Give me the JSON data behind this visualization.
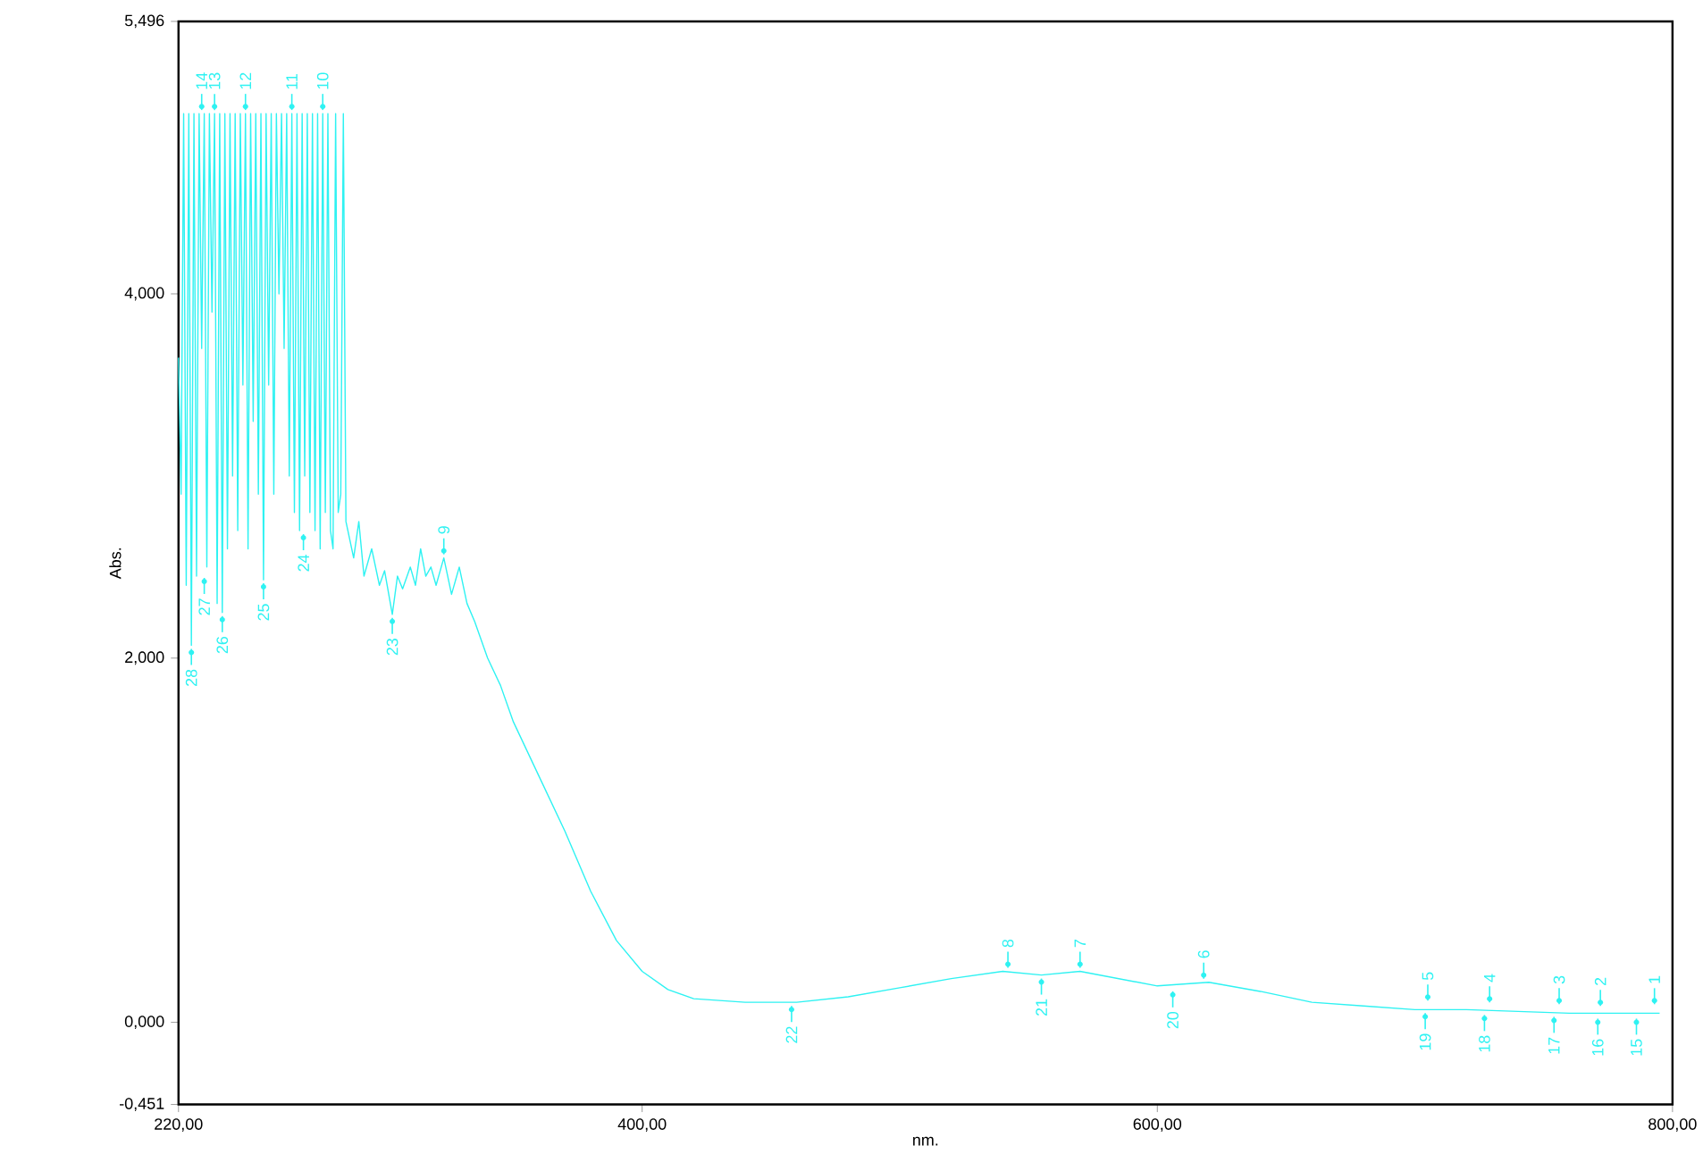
{
  "chart_data": {
    "type": "line",
    "xlabel": "nm.",
    "ylabel": "Abs.",
    "xlim": [
      220,
      800
    ],
    "ylim": [
      -0.451,
      5.496
    ],
    "xticks": [
      {
        "value": 220,
        "label": "220,00"
      },
      {
        "value": 400,
        "label": "400,00"
      },
      {
        "value": 600,
        "label": "600,00"
      },
      {
        "value": 800,
        "label": "800,00"
      }
    ],
    "yticks": [
      {
        "value": -0.451,
        "label": "-0,451"
      },
      {
        "value": 0,
        "label": "0,000"
      },
      {
        "value": 2,
        "label": "2,000"
      },
      {
        "value": 4,
        "label": "4,000"
      },
      {
        "value": 5.496,
        "label": "5,496"
      }
    ],
    "series": [
      {
        "color": "#2ef2f2",
        "x": [
          220,
          221,
          222,
          223,
          224,
          225,
          226,
          227,
          228,
          229,
          230,
          231,
          232,
          233,
          234,
          235,
          236,
          237,
          238,
          239,
          240,
          241,
          242,
          243,
          244,
          245,
          246,
          247,
          248,
          249,
          250,
          251,
          252,
          253,
          254,
          255,
          256,
          257,
          258,
          259,
          260,
          261,
          262,
          263,
          264,
          265,
          266,
          267,
          268,
          269,
          270,
          271,
          272,
          273,
          274,
          275,
          276,
          277,
          278,
          279,
          280,
          281,
          282,
          283,
          284,
          285,
          288,
          290,
          292,
          295,
          298,
          300,
          303,
          305,
          307,
          310,
          312,
          314,
          316,
          318,
          320,
          323,
          326,
          329,
          332,
          335,
          340,
          345,
          350,
          360,
          370,
          380,
          390,
          400,
          410,
          420,
          440,
          460,
          480,
          500,
          520,
          540,
          555,
          570,
          585,
          600,
          620,
          640,
          660,
          680,
          700,
          720,
          740,
          760,
          780,
          795
        ],
        "values": [
          3.65,
          2.9,
          4.99,
          2.4,
          4.99,
          2.07,
          4.99,
          2.45,
          4.99,
          3.7,
          4.99,
          2.5,
          4.99,
          3.9,
          4.99,
          2.3,
          4.99,
          2.25,
          4.99,
          2.6,
          4.99,
          3.0,
          4.99,
          2.7,
          4.99,
          3.5,
          4.99,
          2.6,
          4.99,
          3.3,
          4.99,
          2.9,
          4.99,
          2.43,
          4.99,
          3.5,
          4.99,
          2.9,
          4.99,
          4.0,
          4.99,
          3.7,
          4.99,
          3.0,
          4.99,
          2.8,
          4.99,
          2.7,
          4.99,
          3.0,
          4.99,
          2.8,
          4.99,
          2.7,
          4.99,
          2.6,
          4.99,
          2.8,
          4.99,
          2.7,
          2.6,
          4.99,
          2.8,
          2.9,
          4.99,
          2.75,
          2.55,
          2.75,
          2.45,
          2.6,
          2.4,
          2.48,
          2.24,
          2.45,
          2.38,
          2.5,
          2.4,
          2.6,
          2.45,
          2.5,
          2.4,
          2.55,
          2.35,
          2.5,
          2.3,
          2.2,
          2.0,
          1.85,
          1.65,
          1.35,
          1.05,
          0.72,
          0.45,
          0.28,
          0.18,
          0.13,
          0.11,
          0.11,
          0.14,
          0.19,
          0.24,
          0.28,
          0.26,
          0.28,
          0.24,
          0.2,
          0.22,
          0.17,
          0.11,
          0.09,
          0.07,
          0.07,
          0.06,
          0.05,
          0.05,
          0.05
        ]
      }
    ],
    "annotations": [
      {
        "text": "1",
        "x": 793,
        "y": 0.08
      },
      {
        "text": "2",
        "x": 772,
        "y": 0.07
      },
      {
        "text": "3",
        "x": 756,
        "y": 0.08
      },
      {
        "text": "4",
        "x": 729,
        "y": 0.09
      },
      {
        "text": "5",
        "x": 705,
        "y": 0.1
      },
      {
        "text": "6",
        "x": 618,
        "y": 0.22
      },
      {
        "text": "7",
        "x": 570,
        "y": 0.28
      },
      {
        "text": "8",
        "x": 542,
        "y": 0.28
      },
      {
        "text": "9",
        "x": 323,
        "y": 2.55
      },
      {
        "text": "10",
        "x": 276,
        "y": 4.99
      },
      {
        "text": "11",
        "x": 264,
        "y": 4.99
      },
      {
        "text": "12",
        "x": 246,
        "y": 4.99
      },
      {
        "text": "13",
        "x": 234,
        "y": 4.99
      },
      {
        "text": "14",
        "x": 229,
        "y": 4.99
      },
      {
        "text": "15",
        "x": 786,
        "y": 0.04
      },
      {
        "text": "16",
        "x": 771,
        "y": 0.04
      },
      {
        "text": "17",
        "x": 754,
        "y": 0.05
      },
      {
        "text": "18",
        "x": 727,
        "y": 0.06
      },
      {
        "text": "19",
        "x": 704,
        "y": 0.07
      },
      {
        "text": "20",
        "x": 606,
        "y": 0.19
      },
      {
        "text": "21",
        "x": 555,
        "y": 0.26
      },
      {
        "text": "22",
        "x": 458,
        "y": 0.11
      },
      {
        "text": "23",
        "x": 303,
        "y": 2.24
      },
      {
        "text": "24",
        "x": 268.5,
        "y": 2.7
      },
      {
        "text": "25",
        "x": 253,
        "y": 2.43
      },
      {
        "text": "26",
        "x": 237,
        "y": 2.25
      },
      {
        "text": "27",
        "x": 230,
        "y": 2.46
      },
      {
        "text": "28",
        "x": 225,
        "y": 2.07
      }
    ]
  }
}
